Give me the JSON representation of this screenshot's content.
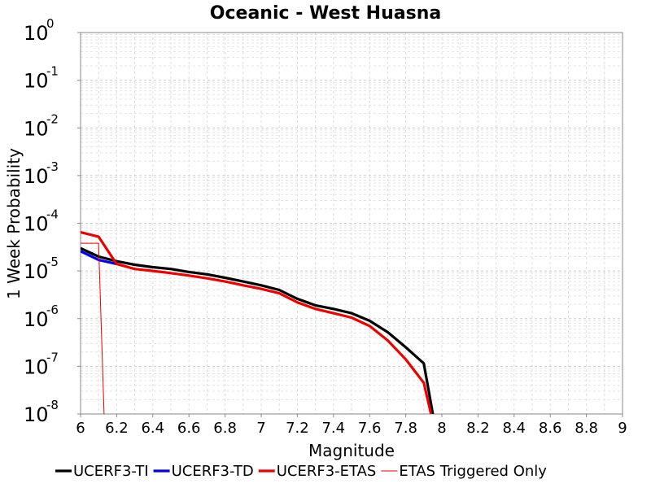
{
  "chart_data": {
    "type": "line",
    "title": "Oceanic - West Huasna",
    "xlabel": "Magnitude",
    "ylabel": "1 Week Probability",
    "xlim": [
      6,
      9
    ],
    "ylim": [
      1e-08,
      1
    ],
    "yscale": "log",
    "grid": true,
    "legend_position": "bottom",
    "x_ticks": [
      "6",
      "6.2",
      "6.4",
      "6.6",
      "6.8",
      "7",
      "7.2",
      "7.4",
      "7.6",
      "7.8",
      "8",
      "8.2",
      "8.4",
      "8.6",
      "8.8",
      "9"
    ],
    "y_ticks": [
      {
        "base": "10",
        "exp": "0",
        "value": 1
      },
      {
        "base": "10",
        "exp": "-1",
        "value": 0.1
      },
      {
        "base": "10",
        "exp": "-2",
        "value": 0.01
      },
      {
        "base": "10",
        "exp": "-3",
        "value": 0.001
      },
      {
        "base": "10",
        "exp": "-4",
        "value": 0.0001
      },
      {
        "base": "10",
        "exp": "-5",
        "value": 1e-05
      },
      {
        "base": "10",
        "exp": "-6",
        "value": 1e-06
      },
      {
        "base": "10",
        "exp": "-7",
        "value": 1e-07
      },
      {
        "base": "10",
        "exp": "-8",
        "value": 1e-08
      }
    ],
    "series": [
      {
        "name": "UCERF3-TI",
        "color": "#000000",
        "width": "thick",
        "x": [
          6.0,
          6.1,
          6.2,
          6.3,
          6.4,
          6.5,
          6.6,
          6.7,
          6.8,
          6.9,
          7.0,
          7.1,
          7.2,
          7.3,
          7.4,
          7.5,
          7.6,
          7.7,
          7.8,
          7.9,
          7.95
        ],
        "y": [
          3e-05,
          2e-05,
          1.6e-05,
          1.35e-05,
          1.2e-05,
          1.1e-05,
          9.5e-06,
          8.5e-06,
          7.2e-06,
          6e-06,
          5e-06,
          4e-06,
          2.6e-06,
          1.9e-06,
          1.6e-06,
          1.3e-06,
          9e-07,
          5.2e-07,
          2.5e-07,
          1.15e-07,
          1e-08
        ]
      },
      {
        "name": "UCERF3-TD",
        "color": "#0000ee",
        "width": "thick",
        "x": [
          6.0,
          6.1,
          6.2
        ],
        "y": [
          2.6e-05,
          1.7e-05,
          1.4e-05
        ]
      },
      {
        "name": "UCERF3-ETAS",
        "color": "#ee0000",
        "width": "thick",
        "x": [
          6.0,
          6.1,
          6.2,
          6.3,
          6.4,
          6.5,
          6.6,
          6.7,
          6.8,
          6.9,
          7.0,
          7.1,
          7.2,
          7.3,
          7.4,
          7.5,
          7.6,
          7.7,
          7.8,
          7.9,
          7.94
        ],
        "y": [
          6.5e-05,
          5.2e-05,
          1.4e-05,
          1.1e-05,
          1e-05,
          9e-06,
          8e-06,
          7e-06,
          6e-06,
          5e-06,
          4.2e-06,
          3.4e-06,
          2.2e-06,
          1.6e-06,
          1.3e-06,
          1.05e-06,
          7e-07,
          3.5e-07,
          1.4e-07,
          4.5e-08,
          1e-08
        ]
      },
      {
        "name": "ETAS Triggered Only",
        "color": "#ee0000",
        "width": "thin",
        "x": [
          6.0,
          6.1,
          6.1,
          6.13
        ],
        "y": [
          3.8e-05,
          3.8e-05,
          3.6e-05,
          1e-08
        ]
      }
    ]
  }
}
